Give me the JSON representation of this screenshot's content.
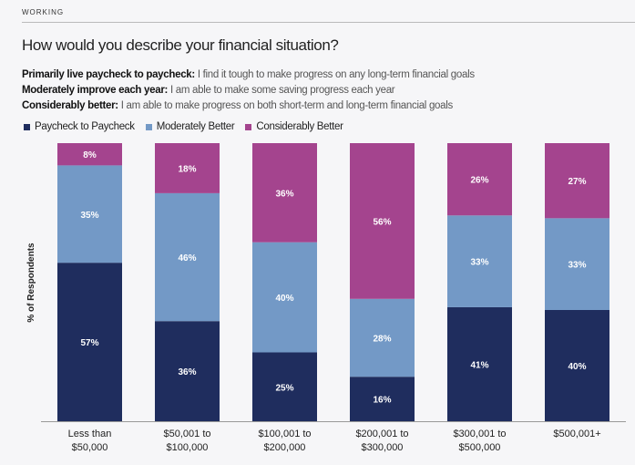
{
  "section": "WORKING",
  "title": "How would you describe your financial situation?",
  "descriptions": [
    {
      "term": "Primarily live paycheck to paycheck:",
      "text": " I find it tough to make progress on any long-term financial goals"
    },
    {
      "term": "Moderately improve each year:",
      "text": " I am able to make some saving progress each year"
    },
    {
      "term": "Considerably better:",
      "text": " I am able to make progress on both short-term and long-term financial goals"
    }
  ],
  "colors": {
    "paycheck": "#1f2d5e",
    "moderate": "#7399c6",
    "considerable": "#a4448e"
  },
  "chart_data": {
    "type": "bar",
    "stacked": true,
    "title": "How would you describe your financial situation?",
    "xlabel": "",
    "ylabel": "% of Respondents",
    "legend_position": "top-left",
    "categories": [
      [
        "Less than",
        "$50,000"
      ],
      [
        "$50,001 to",
        "$100,000"
      ],
      [
        "$100,001 to",
        "$200,000"
      ],
      [
        "$200,001 to",
        "$300,000"
      ],
      [
        "$300,001 to",
        "$500,000"
      ],
      [
        "$500,001+",
        ""
      ]
    ],
    "series": [
      {
        "name": "Paycheck to Paycheck",
        "color": "#1f2d5e",
        "values": [
          57,
          36,
          25,
          16,
          41,
          40
        ]
      },
      {
        "name": "Moderately Better",
        "color": "#7399c6",
        "values": [
          35,
          46,
          40,
          28,
          33,
          33
        ]
      },
      {
        "name": "Considerably Better",
        "color": "#a4448e",
        "values": [
          8,
          18,
          36,
          56,
          26,
          27
        ]
      }
    ],
    "ylim": [
      0,
      100
    ]
  }
}
